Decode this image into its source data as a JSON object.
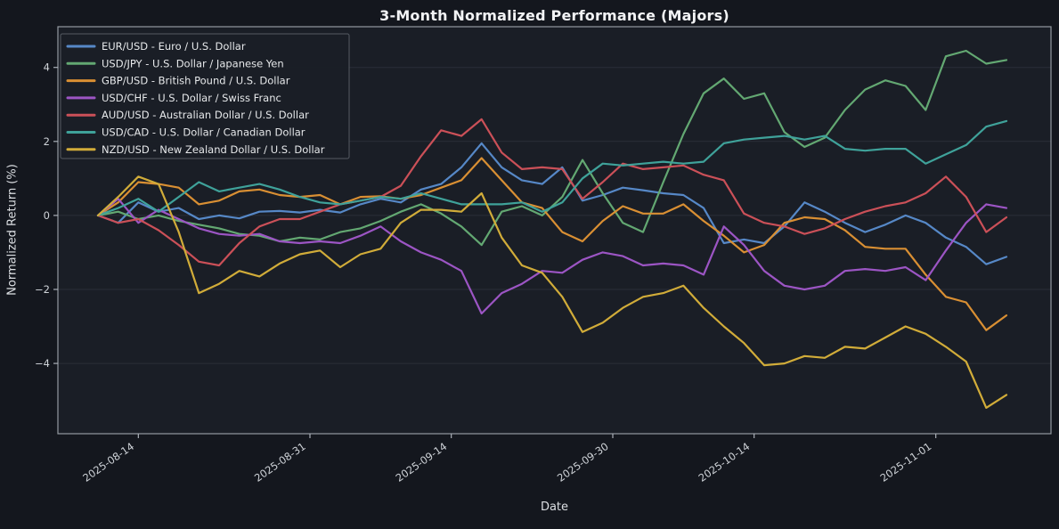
{
  "page": {
    "background": "#14171e",
    "axes_background": "#1a1e26",
    "spine_color": "#aab0b8",
    "grid_color": "#2a2f38",
    "tick_label_color": "#cfd3d8",
    "text_color": "#dcdfe3"
  },
  "chart_data": {
    "type": "line",
    "title": "3-Month Normalized Performance (Majors)",
    "xlabel": "Date",
    "ylabel": "Normalized Return (%)",
    "legend_position": "upper left",
    "grid": "horizontal-faint",
    "ylim": [
      -5.9,
      5.1
    ],
    "y_ticks": [
      -4,
      -2,
      0,
      2,
      4
    ],
    "x_start": "2025-08-10",
    "x_end": "2025-11-08",
    "x_tick_dates": [
      "2025-08-14",
      "2025-08-31",
      "2025-09-14",
      "2025-09-30",
      "2025-10-14",
      "2025-11-01"
    ],
    "x_tick_labels": [
      "2025-08-14",
      "2025-08-31",
      "2025-09-14",
      "2025-09-30",
      "2025-10-14",
      "2025-11-01"
    ],
    "dates": [
      "2025-08-10",
      "2025-08-12",
      "2025-08-14",
      "2025-08-16",
      "2025-08-18",
      "2025-08-20",
      "2025-08-22",
      "2025-08-24",
      "2025-08-26",
      "2025-08-28",
      "2025-08-30",
      "2025-09-01",
      "2025-09-03",
      "2025-09-05",
      "2025-09-07",
      "2025-09-09",
      "2025-09-11",
      "2025-09-13",
      "2025-09-15",
      "2025-09-17",
      "2025-09-19",
      "2025-09-21",
      "2025-09-23",
      "2025-09-25",
      "2025-09-27",
      "2025-09-29",
      "2025-10-01",
      "2025-10-03",
      "2025-10-05",
      "2025-10-07",
      "2025-10-09",
      "2025-10-11",
      "2025-10-13",
      "2025-10-15",
      "2025-10-17",
      "2025-10-19",
      "2025-10-21",
      "2025-10-23",
      "2025-10-25",
      "2025-10-27",
      "2025-10-29",
      "2025-10-31",
      "2025-11-02",
      "2025-11-04",
      "2025-11-06",
      "2025-11-08"
    ],
    "series": [
      {
        "name": "EUR/USD",
        "label": "EUR/USD - Euro / U.S. Dollar",
        "color": "#5688c7",
        "values": [
          0,
          -0.2,
          0.35,
          0.1,
          0.2,
          -0.1,
          0.0,
          -0.08,
          0.1,
          0.12,
          0.08,
          0.15,
          0.08,
          0.3,
          0.45,
          0.35,
          0.7,
          0.85,
          1.3,
          1.95,
          1.3,
          0.95,
          0.85,
          1.3,
          0.4,
          0.55,
          0.75,
          0.68,
          0.6,
          0.55,
          0.2,
          -0.75,
          -0.65,
          -0.75,
          -0.3,
          0.35,
          0.1,
          -0.2,
          -0.45,
          -0.25,
          0.0,
          -0.2,
          -0.6,
          -0.85,
          -1.32,
          -1.12
        ]
      },
      {
        "name": "USD/JPY",
        "label": "USD/JPY - U.S. Dollar / Japanese Yen",
        "color": "#63a872",
        "values": [
          0,
          0.1,
          -0.1,
          0.0,
          -0.15,
          -0.25,
          -0.35,
          -0.5,
          -0.55,
          -0.7,
          -0.6,
          -0.65,
          -0.45,
          -0.35,
          -0.15,
          0.1,
          0.3,
          0.05,
          -0.3,
          -0.8,
          0.1,
          0.25,
          0.0,
          0.5,
          1.5,
          0.6,
          -0.2,
          -0.45,
          0.9,
          2.2,
          3.3,
          3.7,
          3.15,
          3.3,
          2.25,
          1.85,
          2.1,
          2.85,
          3.4,
          3.65,
          3.5,
          2.85,
          4.3,
          4.45,
          4.1,
          4.2
        ]
      },
      {
        "name": "GBP/USD",
        "label": "GBP/USD - British Pound / U.S. Dollar",
        "color": "#d98f33",
        "values": [
          0,
          0.35,
          0.9,
          0.85,
          0.75,
          0.3,
          0.4,
          0.65,
          0.7,
          0.55,
          0.5,
          0.55,
          0.3,
          0.5,
          0.52,
          0.45,
          0.55,
          0.75,
          0.95,
          1.55,
          0.95,
          0.35,
          0.2,
          -0.45,
          -0.7,
          -0.15,
          0.25,
          0.05,
          0.05,
          0.3,
          -0.15,
          -0.55,
          -1.0,
          -0.8,
          -0.2,
          -0.05,
          -0.1,
          -0.4,
          -0.85,
          -0.9,
          -0.9,
          -1.6,
          -2.2,
          -2.35,
          -3.1,
          -2.7
        ]
      },
      {
        "name": "USD/CHF",
        "label": "USD/CHF - U.S. Dollar / Swiss Franc",
        "color": "#9c55c4",
        "values": [
          0,
          0.45,
          -0.2,
          0.15,
          -0.1,
          -0.35,
          -0.5,
          -0.55,
          -0.5,
          -0.7,
          -0.75,
          -0.7,
          -0.75,
          -0.55,
          -0.3,
          -0.7,
          -1.0,
          -1.2,
          -1.5,
          -2.65,
          -2.1,
          -1.85,
          -1.5,
          -1.55,
          -1.2,
          -1.0,
          -1.1,
          -1.35,
          -1.3,
          -1.35,
          -1.6,
          -0.3,
          -0.8,
          -1.5,
          -1.9,
          -2.0,
          -1.9,
          -1.5,
          -1.45,
          -1.5,
          -1.4,
          -1.75,
          -0.95,
          -0.2,
          0.3,
          0.2
        ]
      },
      {
        "name": "AUD/USD",
        "label": "AUD/USD - Australian Dollar / U.S. Dollar",
        "color": "#cb5058",
        "values": [
          0,
          -0.2,
          -0.1,
          -0.4,
          -0.8,
          -1.25,
          -1.35,
          -0.75,
          -0.3,
          -0.1,
          -0.1,
          0.1,
          0.3,
          0.4,
          0.5,
          0.8,
          1.6,
          2.3,
          2.15,
          2.6,
          1.7,
          1.25,
          1.3,
          1.25,
          0.45,
          0.9,
          1.4,
          1.25,
          1.3,
          1.35,
          1.1,
          0.95,
          0.05,
          -0.2,
          -0.3,
          -0.5,
          -0.35,
          -0.1,
          0.1,
          0.25,
          0.35,
          0.6,
          1.05,
          0.5,
          -0.45,
          -0.05
        ]
      },
      {
        "name": "USD/CAD",
        "label": "USD/CAD - U.S. Dollar / Canadian Dollar",
        "color": "#3fa29a",
        "values": [
          0,
          0.2,
          0.45,
          0.1,
          0.5,
          0.9,
          0.65,
          0.75,
          0.85,
          0.7,
          0.5,
          0.35,
          0.3,
          0.4,
          0.5,
          0.45,
          0.6,
          0.45,
          0.3,
          0.3,
          0.3,
          0.35,
          0.1,
          0.35,
          1.0,
          1.4,
          1.35,
          1.4,
          1.45,
          1.4,
          1.45,
          1.95,
          2.05,
          2.1,
          2.15,
          2.05,
          2.15,
          1.8,
          1.75,
          1.8,
          1.8,
          1.4,
          1.65,
          1.9,
          2.4,
          2.55
        ]
      },
      {
        "name": "NZD/USD",
        "label": "NZD/USD - New Zealand Dollar / U.S. Dollar",
        "color": "#d1ac39",
        "values": [
          0,
          0.5,
          1.05,
          0.85,
          -0.45,
          -2.1,
          -1.85,
          -1.5,
          -1.65,
          -1.3,
          -1.05,
          -0.95,
          -1.4,
          -1.05,
          -0.9,
          -0.2,
          0.15,
          0.15,
          0.1,
          0.6,
          -0.6,
          -1.35,
          -1.55,
          -2.2,
          -3.15,
          -2.9,
          -2.5,
          -2.2,
          -2.1,
          -1.9,
          -2.5,
          -3.0,
          -3.45,
          -4.05,
          -4.0,
          -3.8,
          -3.85,
          -3.55,
          -3.6,
          -3.3,
          -3.0,
          -3.2,
          -3.55,
          -3.95,
          -5.2,
          -4.85
        ]
      }
    ]
  }
}
